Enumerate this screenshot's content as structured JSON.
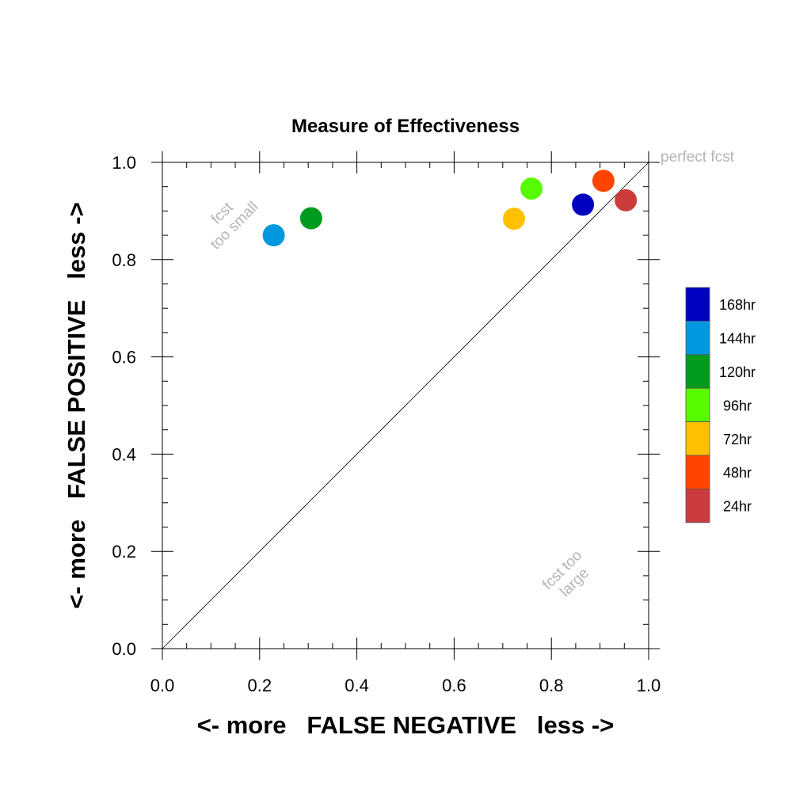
{
  "chart_data": {
    "type": "scatter",
    "title": "Measure of Effectiveness",
    "xlabel": "<- more   FALSE NEGATIVE   less ->",
    "ylabel": "<- more   FALSE POSITIVE   less ->",
    "xlim": [
      0.0,
      1.0
    ],
    "ylim": [
      0.0,
      1.0
    ],
    "x_ticks": [
      "0.0",
      "0.2",
      "0.4",
      "0.6",
      "0.8",
      "1.0"
    ],
    "y_ticks": [
      "0.0",
      "0.2",
      "0.4",
      "0.6",
      "0.8",
      "1.0"
    ],
    "x_tick_values": [
      0,
      0.2,
      0.4,
      0.6,
      0.8,
      1.0
    ],
    "y_tick_values": [
      0,
      0.2,
      0.4,
      0.6,
      0.8,
      1.0
    ],
    "grid": false,
    "reference_line": "diagonal y=x",
    "annotations": {
      "perfect": "perfect fcst",
      "small_line1": "fcst",
      "small_line2": "too small",
      "large_line1": "fcst too",
      "large_line2": "large"
    },
    "legend_position": "right",
    "series": [
      {
        "name": "168hr",
        "color": "#0000c0",
        "x": 0.865,
        "y": 0.913
      },
      {
        "name": "144hr",
        "color": "#0098e0",
        "x": 0.229,
        "y": 0.85
      },
      {
        "name": "120hr",
        "color": "#009b1c",
        "x": 0.306,
        "y": 0.885
      },
      {
        "name": "96hr",
        "color": "#58fa00",
        "x": 0.759,
        "y": 0.946
      },
      {
        "name": "72hr",
        "color": "#ffc000",
        "x": 0.723,
        "y": 0.884
      },
      {
        "name": "48hr",
        "color": "#ff4500",
        "x": 0.907,
        "y": 0.962
      },
      {
        "name": "24hr",
        "color": "#cc3c3c",
        "x": 0.953,
        "y": 0.922
      }
    ]
  }
}
